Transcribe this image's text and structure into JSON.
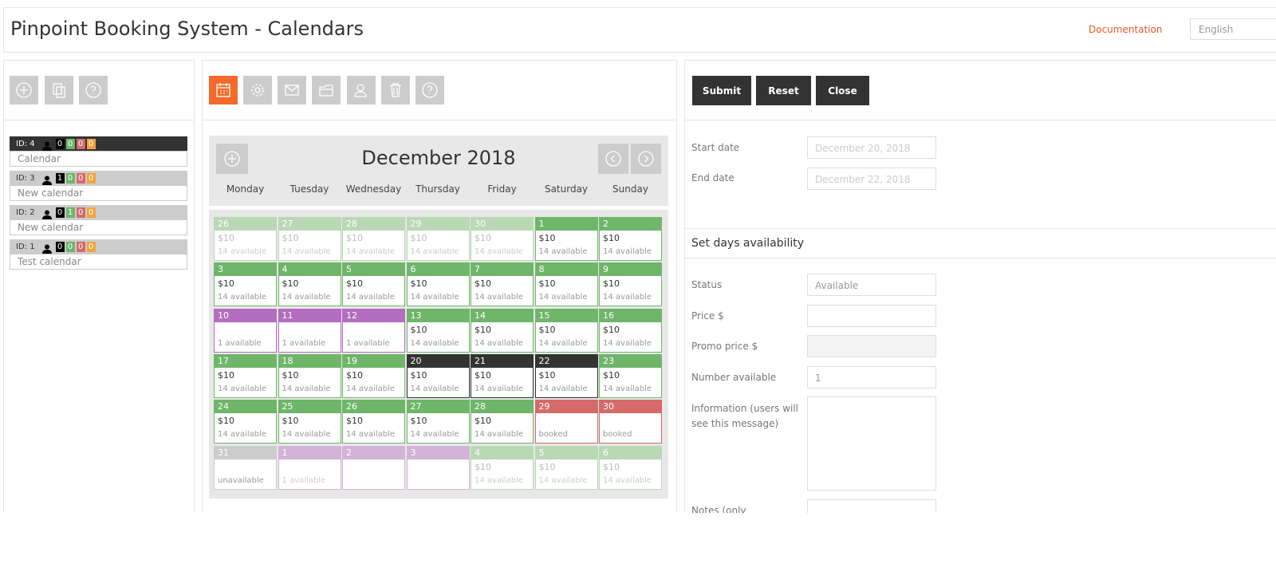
{
  "header": {
    "title": "Pinpoint Booking System - Calendars",
    "documentation": "Documentation",
    "language": "English"
  },
  "calendars": [
    {
      "id_label": "ID: 4",
      "counts": [
        0,
        0,
        0,
        0
      ],
      "name": "Calendar",
      "selected": true
    },
    {
      "id_label": "ID: 3",
      "counts": [
        1,
        0,
        0,
        0
      ],
      "name": "New calendar",
      "selected": false
    },
    {
      "id_label": "ID: 2",
      "counts": [
        0,
        1,
        0,
        0
      ],
      "name": "New calendar",
      "selected": false
    },
    {
      "id_label": "ID: 1",
      "counts": [
        0,
        0,
        0,
        0
      ],
      "name": "Test calendar",
      "selected": false
    }
  ],
  "calendar": {
    "month": "December 2018",
    "weekdays": [
      "Monday",
      "Tuesday",
      "Wednesday",
      "Thursday",
      "Friday",
      "Saturday",
      "Sunday"
    ],
    "weeks": [
      [
        {
          "day": "26",
          "price": "$10",
          "available": "14 available",
          "state": "past"
        },
        {
          "day": "27",
          "price": "$10",
          "available": "14 available",
          "state": "past"
        },
        {
          "day": "28",
          "price": "$10",
          "available": "14 available",
          "state": "past"
        },
        {
          "day": "29",
          "price": "$10",
          "available": "14 available",
          "state": "past"
        },
        {
          "day": "30",
          "price": "$10",
          "available": "14 available",
          "state": "past"
        },
        {
          "day": "1",
          "price": "$10",
          "available": "14 available",
          "state": "available"
        },
        {
          "day": "2",
          "price": "$10",
          "available": "14 available",
          "state": "available"
        }
      ],
      [
        {
          "day": "3",
          "price": "$10",
          "available": "14 available",
          "state": "available"
        },
        {
          "day": "4",
          "price": "$10",
          "available": "14 available",
          "state": "available"
        },
        {
          "day": "5",
          "price": "$10",
          "available": "14 available",
          "state": "available"
        },
        {
          "day": "6",
          "price": "$10",
          "available": "14 available",
          "state": "available"
        },
        {
          "day": "7",
          "price": "$10",
          "available": "14 available",
          "state": "available"
        },
        {
          "day": "8",
          "price": "$10",
          "available": "14 available",
          "state": "available"
        },
        {
          "day": "9",
          "price": "$10",
          "available": "14 available",
          "state": "available"
        }
      ],
      [
        {
          "day": "10",
          "available": "1 available",
          "state": "special"
        },
        {
          "day": "11",
          "available": "1 available",
          "state": "special"
        },
        {
          "day": "12",
          "available": "1 available",
          "state": "special"
        },
        {
          "day": "13",
          "price": "$10",
          "available": "14 available",
          "state": "available"
        },
        {
          "day": "14",
          "price": "$10",
          "available": "14 available",
          "state": "available"
        },
        {
          "day": "15",
          "price": "$10",
          "available": "14 available",
          "state": "available"
        },
        {
          "day": "16",
          "price": "$10",
          "available": "14 available",
          "state": "available"
        }
      ],
      [
        {
          "day": "17",
          "price": "$10",
          "available": "14 available",
          "state": "available"
        },
        {
          "day": "18",
          "price": "$10",
          "available": "14 available",
          "state": "available"
        },
        {
          "day": "19",
          "price": "$10",
          "available": "14 available",
          "state": "available"
        },
        {
          "day": "20",
          "price": "$10",
          "available": "14 available",
          "state": "selected"
        },
        {
          "day": "21",
          "price": "$10",
          "available": "14 available",
          "state": "selected"
        },
        {
          "day": "22",
          "price": "$10",
          "available": "14 available",
          "state": "selected"
        },
        {
          "day": "23",
          "price": "$10",
          "available": "14 available",
          "state": "available"
        }
      ],
      [
        {
          "day": "24",
          "price": "$10",
          "available": "14 available",
          "state": "available"
        },
        {
          "day": "25",
          "price": "$10",
          "available": "14 available",
          "state": "available"
        },
        {
          "day": "26",
          "price": "$10",
          "available": "14 available",
          "state": "available"
        },
        {
          "day": "27",
          "price": "$10",
          "available": "14 available",
          "state": "available"
        },
        {
          "day": "28",
          "price": "$10",
          "available": "14 available",
          "state": "available"
        },
        {
          "day": "29",
          "available": "booked",
          "state": "booked"
        },
        {
          "day": "30",
          "available": "booked",
          "state": "booked"
        }
      ],
      [
        {
          "day": "31",
          "available": "unavailable",
          "state": "unavailable"
        },
        {
          "day": "1",
          "available": "1 available",
          "state": "next-special"
        },
        {
          "day": "2",
          "state": "next-special"
        },
        {
          "day": "3",
          "state": "next-special"
        },
        {
          "day": "4",
          "price": "$10",
          "available": "14 available",
          "state": "past"
        },
        {
          "day": "5",
          "price": "$10",
          "available": "14 available",
          "state": "past"
        },
        {
          "day": "6",
          "price": "$10",
          "available": "14 available",
          "state": "past"
        }
      ]
    ]
  },
  "form": {
    "buttons": [
      "Submit",
      "Reset",
      "Close"
    ],
    "start_date_label": "Start date",
    "start_date_placeholder": "December 20, 2018",
    "end_date_label": "End date",
    "end_date_placeholder": "December 22, 2018",
    "section_title": "Set days availability",
    "status_label": "Status",
    "status_value": "Available",
    "price_label": "Price $",
    "promo_label": "Promo price $",
    "number_label": "Number available",
    "number_value": "1",
    "info_label": "Information (users will see this message)",
    "notes_label": "Notes (only"
  }
}
